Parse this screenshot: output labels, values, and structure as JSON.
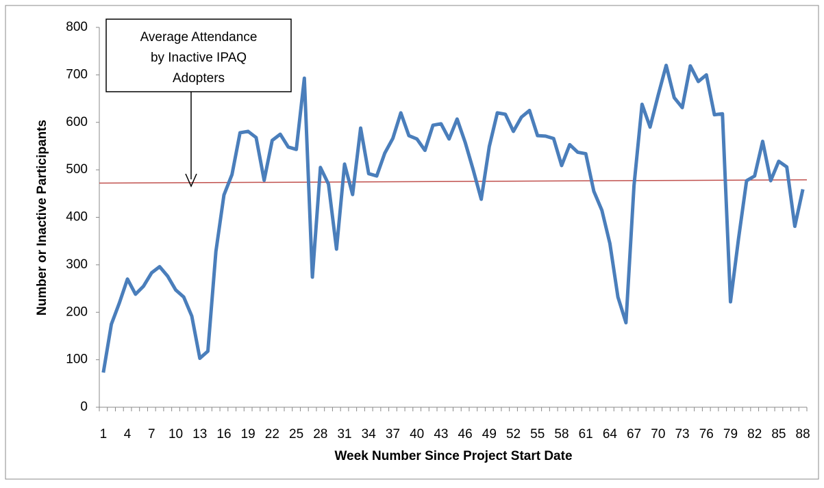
{
  "chart_data": {
    "type": "line",
    "x_label": "Week Number Since Project Start Date",
    "y_label": "Number or Inactive Participants",
    "categories": [
      1,
      null,
      null,
      4,
      null,
      null,
      7,
      null,
      null,
      10,
      null,
      null,
      13,
      null,
      null,
      16,
      null,
      null,
      19,
      null,
      null,
      22,
      null,
      null,
      25,
      null,
      null,
      28,
      null,
      null,
      31,
      null,
      null,
      34,
      null,
      null,
      37,
      null,
      null,
      40,
      null,
      null,
      43,
      null,
      null,
      46,
      null,
      null,
      49,
      null,
      null,
      52,
      null,
      null,
      55,
      null,
      null,
      58,
      null,
      null,
      61,
      null,
      null,
      64,
      null,
      null,
      67,
      null,
      null,
      70,
      null,
      null,
      73,
      null,
      null,
      76,
      null,
      null,
      79,
      null,
      null,
      82,
      null,
      null,
      85,
      null,
      null,
      88
    ],
    "series": [
      {
        "color": "#4a7ebb",
        "values": [
          73,
          175,
          220,
          270,
          238,
          255,
          283,
          296,
          276,
          247,
          232,
          192,
          103,
          118,
          328,
          447,
          490,
          578,
          581,
          568,
          478,
          562,
          575,
          548,
          543,
          693,
          274,
          505,
          470,
          333,
          512,
          448,
          588,
          492,
          487,
          535,
          566,
          620,
          572,
          565,
          541,
          594,
          597,
          565,
          607,
          558,
          500,
          438,
          549,
          620,
          617,
          581,
          611,
          625,
          572,
          571,
          566,
          509,
          553,
          537,
          534,
          455,
          415,
          345,
          232,
          178,
          467,
          638,
          590,
          657,
          720,
          652,
          631,
          719,
          686,
          700,
          616,
          618,
          222,
          355,
          477,
          487,
          560,
          477,
          518,
          506,
          381,
          459
        ]
      }
    ],
    "average_line": {
      "text": [
        "Average Attendance",
        "by Inactive IPAQ",
        "Adopters"
      ],
      "values": [
        472,
        479
      ],
      "color": "#c0504d"
    },
    "ylim": [
      0,
      800
    ],
    "yticks": [
      0,
      100,
      200,
      300,
      400,
      500,
      600,
      700,
      800
    ],
    "grid": false
  }
}
